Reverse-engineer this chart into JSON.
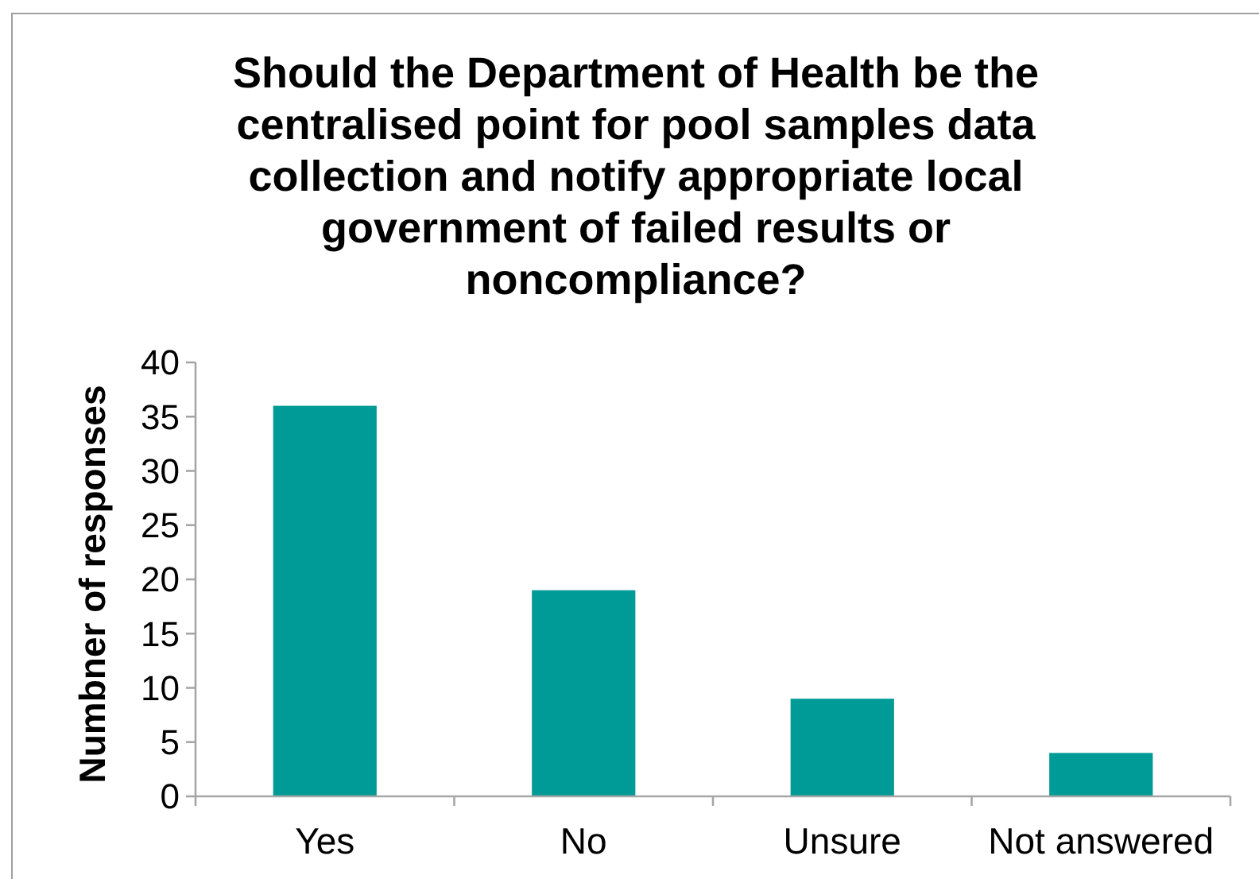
{
  "chart_data": {
    "type": "bar",
    "title": "Should the Department of Health be the centralised point for pool samples data collection and notify appropriate local government of failed results or noncompliance?",
    "ylabel": "Numbner of responses",
    "categories": [
      "Yes",
      "No",
      "Unsure",
      "Not answered"
    ],
    "values": [
      36,
      19,
      9,
      4
    ],
    "color": "#009a97",
    "ylim": [
      0,
      40
    ],
    "yticks": [
      0,
      5,
      10,
      15,
      20,
      25,
      30,
      35,
      40
    ],
    "grid": false
  }
}
